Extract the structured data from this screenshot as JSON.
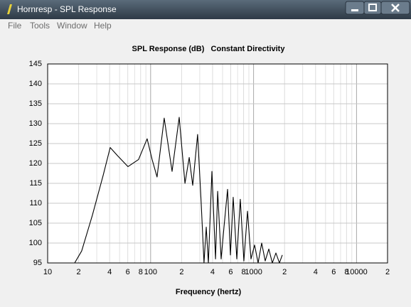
{
  "window": {
    "title": "Hornresp - SPL Response",
    "menu": [
      "File",
      "Tools",
      "Window",
      "Help"
    ]
  },
  "chart_data": {
    "type": "line",
    "title": "SPL Response (dB)   Constant Directivity",
    "x_label": "Frequency (hertz)",
    "x": [
      18.3,
      21.4,
      27.2,
      34.6,
      40.5,
      47.5,
      60.3,
      76.4,
      92.5,
      103.4,
      115.5,
      135.5,
      161.6,
      189.5,
      215.6,
      237.1,
      256.4,
      286.1,
      310,
      330,
      347,
      364,
      394,
      427,
      448,
      484,
      516,
      559,
      596,
      634,
      687,
      743,
      805,
      873,
      944,
      1023,
      1107,
      1199,
      1297,
      1406,
      1521,
      1648,
      1783,
      1901
    ],
    "series": [
      {
        "color": "#000000",
        "values": [
          95,
          98,
          107,
          117,
          124,
          122,
          119.2,
          121,
          126.2,
          121,
          116.6,
          131.4,
          118,
          131.6,
          115,
          121.5,
          114.5,
          127.3,
          110,
          95,
          104,
          95,
          118,
          96,
          113,
          96,
          104,
          113.5,
          97,
          111.5,
          96,
          111,
          95.5,
          108,
          96,
          99.5,
          95,
          100,
          95.5,
          98.5,
          95,
          97.5,
          95,
          97
        ]
      }
    ],
    "xlim": [
      10,
      20000
    ],
    "log_x": true,
    "xticks": [
      10,
      {
        "value": 20,
        "label": "2"
      },
      {
        "value": 40,
        "label": "4"
      },
      {
        "value": 60,
        "label": "6"
      },
      {
        "value": 80,
        "label": "8"
      },
      100,
      {
        "value": 200,
        "label": "2"
      },
      {
        "value": 400,
        "label": "4"
      },
      {
        "value": 600,
        "label": "6"
      },
      {
        "value": 800,
        "label": "8"
      },
      1000,
      {
        "value": 2000,
        "label": "2"
      },
      {
        "value": 4000,
        "label": "4"
      },
      {
        "value": 6000,
        "label": "6"
      },
      {
        "value": 8000,
        "label": "8"
      },
      10000,
      {
        "value": 20000,
        "label": "2"
      }
    ],
    "xminor": [
      30,
      50,
      70,
      90,
      300,
      500,
      700,
      900,
      3000,
      5000,
      7000,
      9000
    ],
    "ylim": [
      95,
      145
    ],
    "yticks": [
      95,
      100,
      105,
      110,
      115,
      120,
      125,
      130,
      135,
      140,
      145
    ],
    "grid": true
  }
}
